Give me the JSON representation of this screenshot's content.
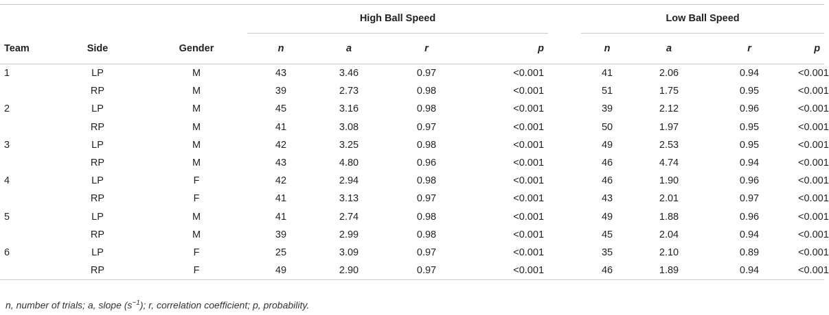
{
  "table": {
    "group_headers": {
      "high": "High Ball Speed",
      "low": "Low Ball Speed"
    },
    "columns": {
      "team": "Team",
      "side": "Side",
      "gender": "Gender",
      "n": "n",
      "a": "a",
      "r": "r",
      "p": "p"
    },
    "rows": [
      {
        "team": "1",
        "side": "LP",
        "gender": "M",
        "h_n": "43",
        "h_a": "3.46",
        "h_r": "0.97",
        "h_p": "<0.001",
        "l_n": "41",
        "l_a": "2.06",
        "l_r": "0.94",
        "l_p": "<0.001"
      },
      {
        "team": "",
        "side": "RP",
        "gender": "M",
        "h_n": "39",
        "h_a": "2.73",
        "h_r": "0.98",
        "h_p": "<0.001",
        "l_n": "51",
        "l_a": "1.75",
        "l_r": "0.95",
        "l_p": "<0.001"
      },
      {
        "team": "2",
        "side": "LP",
        "gender": "M",
        "h_n": "45",
        "h_a": "3.16",
        "h_r": "0.98",
        "h_p": "<0.001",
        "l_n": "39",
        "l_a": "2.12",
        "l_r": "0.96",
        "l_p": "<0.001"
      },
      {
        "team": "",
        "side": "RP",
        "gender": "M",
        "h_n": "41",
        "h_a": "3.08",
        "h_r": "0.97",
        "h_p": "<0.001",
        "l_n": "50",
        "l_a": "1.97",
        "l_r": "0.95",
        "l_p": "<0.001"
      },
      {
        "team": "3",
        "side": "LP",
        "gender": "M",
        "h_n": "42",
        "h_a": "3.25",
        "h_r": "0.98",
        "h_p": "<0.001",
        "l_n": "49",
        "l_a": "2.53",
        "l_r": "0.95",
        "l_p": "<0.001"
      },
      {
        "team": "",
        "side": "RP",
        "gender": "M",
        "h_n": "43",
        "h_a": "4.80",
        "h_r": "0.96",
        "h_p": "<0.001",
        "l_n": "46",
        "l_a": "4.74",
        "l_r": "0.94",
        "l_p": "<0.001"
      },
      {
        "team": "4",
        "side": "LP",
        "gender": "F",
        "h_n": "42",
        "h_a": "2.94",
        "h_r": "0.98",
        "h_p": "<0.001",
        "l_n": "46",
        "l_a": "1.90",
        "l_r": "0.96",
        "l_p": "<0.001"
      },
      {
        "team": "",
        "side": "RP",
        "gender": "F",
        "h_n": "41",
        "h_a": "3.13",
        "h_r": "0.97",
        "h_p": "<0.001",
        "l_n": "43",
        "l_a": "2.01",
        "l_r": "0.97",
        "l_p": "<0.001"
      },
      {
        "team": "5",
        "side": "LP",
        "gender": "M",
        "h_n": "41",
        "h_a": "2.74",
        "h_r": "0.98",
        "h_p": "<0.001",
        "l_n": "49",
        "l_a": "1.88",
        "l_r": "0.96",
        "l_p": "<0.001"
      },
      {
        "team": "",
        "side": "RP",
        "gender": "M",
        "h_n": "39",
        "h_a": "2.99",
        "h_r": "0.98",
        "h_p": "<0.001",
        "l_n": "45",
        "l_a": "2.04",
        "l_r": "0.94",
        "l_p": "<0.001"
      },
      {
        "team": "6",
        "side": "LP",
        "gender": "F",
        "h_n": "25",
        "h_a": "3.09",
        "h_r": "0.97",
        "h_p": "<0.001",
        "l_n": "35",
        "l_a": "2.10",
        "l_r": "0.89",
        "l_p": "<0.001"
      },
      {
        "team": "",
        "side": "RP",
        "gender": "F",
        "h_n": "49",
        "h_a": "2.90",
        "h_r": "0.97",
        "h_p": "<0.001",
        "l_n": "46",
        "l_a": "1.89",
        "l_r": "0.94",
        "l_p": "<0.001"
      }
    ]
  },
  "footnote": {
    "before_sup": "n, number of trials; a, slope (s",
    "sup": "−1",
    "after_sup": "); r, correlation coefficient; p, probability."
  }
}
